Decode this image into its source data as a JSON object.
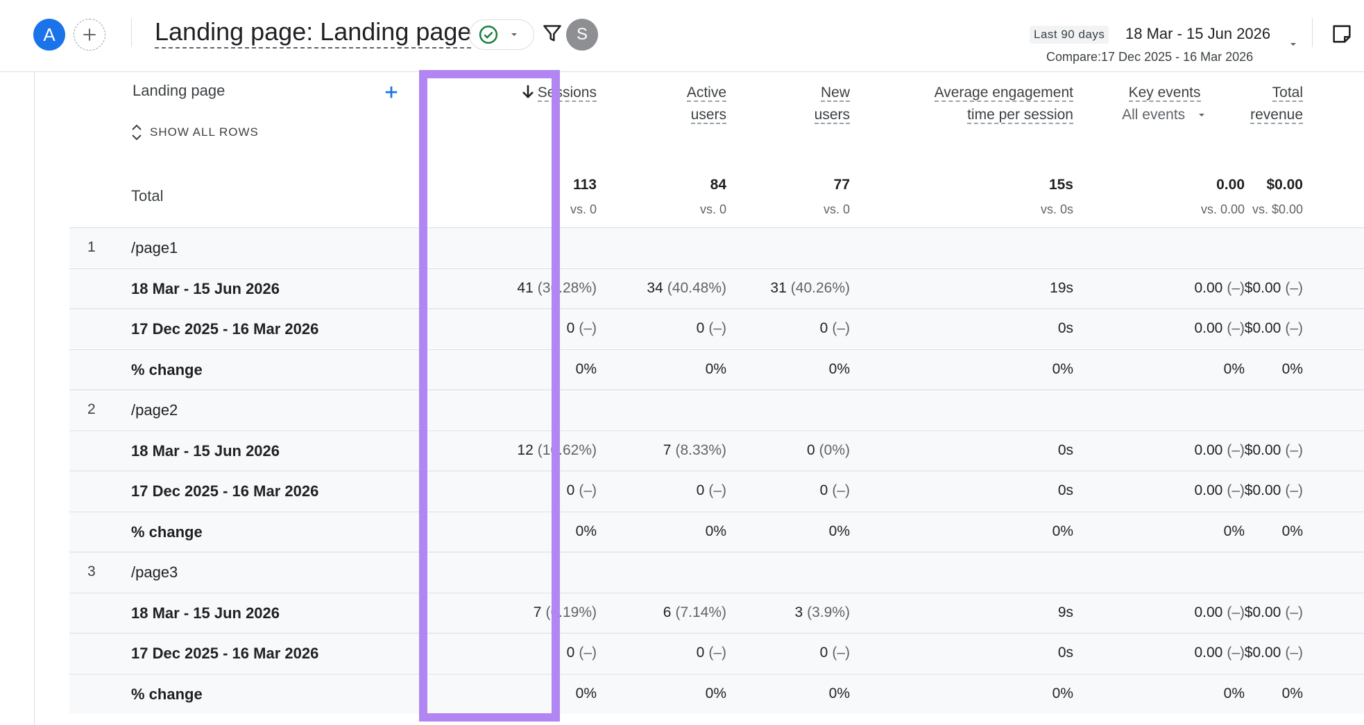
{
  "header": {
    "avatar_primary": "A",
    "avatar_secondary": "S",
    "title": "Landing page: Landing page",
    "date_preset": "Last 90 days",
    "date_range": "18 Mar - 15 Jun 2026",
    "compare_range": "Compare:17 Dec 2025 - 16 Mar 2026"
  },
  "icons": {
    "add": "plus-icon",
    "status": "check-circle-icon",
    "caret": "caret-down-icon",
    "filter": "filter-icon",
    "insights": "insights-icon",
    "sort": "arrow-down-icon",
    "expand": "unfold-icon"
  },
  "colors": {
    "accent": "#1a73e8",
    "highlight": "#b286f2",
    "status_green": "#188038"
  },
  "table": {
    "dimension_header": "Landing page",
    "show_all_rows": "SHOW ALL ROWS",
    "total_label": "Total",
    "columns": [
      {
        "line1": "Sessions",
        "line2": "",
        "sorted": true
      },
      {
        "line1": "Active",
        "line2": "users"
      },
      {
        "line1": "New",
        "line2": "users"
      },
      {
        "line1": "Average engagement",
        "line2": "time per session"
      },
      {
        "line1": "Key events",
        "line2": "All events"
      },
      {
        "line1": "Total",
        "line2": "revenue"
      }
    ],
    "totals": [
      {
        "value": "113",
        "vs": "vs. 0"
      },
      {
        "value": "84",
        "vs": "vs. 0"
      },
      {
        "value": "77",
        "vs": "vs. 0"
      },
      {
        "value": "15s",
        "vs": "vs. 0s"
      },
      {
        "value": "0.00",
        "vs": "vs. 0.00"
      },
      {
        "value": "$0.00",
        "vs": "vs. $0.00"
      }
    ],
    "rows": [
      {
        "idx": "1",
        "label": "/page1",
        "type": "group",
        "cells": []
      },
      {
        "idx": "",
        "label": "18 Mar - 15 Jun 2026",
        "type": "sub",
        "cells": [
          {
            "v": "41",
            "p": "(36.28%)"
          },
          {
            "v": "34",
            "p": "(40.48%)"
          },
          {
            "v": "31",
            "p": "(40.26%)"
          },
          {
            "v": "19s",
            "p": ""
          },
          {
            "v": "0.00",
            "p": "(–)"
          },
          {
            "v": "$0.00",
            "p": "(–)"
          }
        ]
      },
      {
        "idx": "",
        "label": "17 Dec 2025 - 16 Mar 2026",
        "type": "sub",
        "cells": [
          {
            "v": "0",
            "p": "(–)"
          },
          {
            "v": "0",
            "p": "(–)"
          },
          {
            "v": "0",
            "p": "(–)"
          },
          {
            "v": "0s",
            "p": ""
          },
          {
            "v": "0.00",
            "p": "(–)"
          },
          {
            "v": "$0.00",
            "p": "(–)"
          }
        ]
      },
      {
        "idx": "",
        "label": "% change",
        "type": "sub",
        "cells": [
          {
            "v": "0%",
            "p": ""
          },
          {
            "v": "0%",
            "p": ""
          },
          {
            "v": "0%",
            "p": ""
          },
          {
            "v": "0%",
            "p": ""
          },
          {
            "v": "0%",
            "p": ""
          },
          {
            "v": "0%",
            "p": ""
          }
        ]
      },
      {
        "idx": "2",
        "label": "/page2",
        "type": "group",
        "cells": []
      },
      {
        "idx": "",
        "label": "18 Mar - 15 Jun 2026",
        "type": "sub",
        "cells": [
          {
            "v": "12",
            "p": "(10.62%)"
          },
          {
            "v": "7",
            "p": "(8.33%)"
          },
          {
            "v": "0",
            "p": "(0%)"
          },
          {
            "v": "0s",
            "p": ""
          },
          {
            "v": "0.00",
            "p": "(–)"
          },
          {
            "v": "$0.00",
            "p": "(–)"
          }
        ]
      },
      {
        "idx": "",
        "label": "17 Dec 2025 - 16 Mar 2026",
        "type": "sub",
        "cells": [
          {
            "v": "0",
            "p": "(–)"
          },
          {
            "v": "0",
            "p": "(–)"
          },
          {
            "v": "0",
            "p": "(–)"
          },
          {
            "v": "0s",
            "p": ""
          },
          {
            "v": "0.00",
            "p": "(–)"
          },
          {
            "v": "$0.00",
            "p": "(–)"
          }
        ]
      },
      {
        "idx": "",
        "label": "% change",
        "type": "sub",
        "cells": [
          {
            "v": "0%",
            "p": ""
          },
          {
            "v": "0%",
            "p": ""
          },
          {
            "v": "0%",
            "p": ""
          },
          {
            "v": "0%",
            "p": ""
          },
          {
            "v": "0%",
            "p": ""
          },
          {
            "v": "0%",
            "p": ""
          }
        ]
      },
      {
        "idx": "3",
        "label": "/page3",
        "type": "group",
        "cells": []
      },
      {
        "idx": "",
        "label": "18 Mar - 15 Jun 2026",
        "type": "sub",
        "cells": [
          {
            "v": "7",
            "p": "(6.19%)"
          },
          {
            "v": "6",
            "p": "(7.14%)"
          },
          {
            "v": "3",
            "p": "(3.9%)"
          },
          {
            "v": "9s",
            "p": ""
          },
          {
            "v": "0.00",
            "p": "(–)"
          },
          {
            "v": "$0.00",
            "p": "(–)"
          }
        ]
      },
      {
        "idx": "",
        "label": "17 Dec 2025 - 16 Mar 2026",
        "type": "sub",
        "cells": [
          {
            "v": "0",
            "p": "(–)"
          },
          {
            "v": "0",
            "p": "(–)"
          },
          {
            "v": "0",
            "p": "(–)"
          },
          {
            "v": "0s",
            "p": ""
          },
          {
            "v": "0.00",
            "p": "(–)"
          },
          {
            "v": "$0.00",
            "p": "(–)"
          }
        ]
      },
      {
        "idx": "",
        "label": "% change",
        "type": "sub",
        "cells": [
          {
            "v": "0%",
            "p": ""
          },
          {
            "v": "0%",
            "p": ""
          },
          {
            "v": "0%",
            "p": ""
          },
          {
            "v": "0%",
            "p": ""
          },
          {
            "v": "0%",
            "p": ""
          },
          {
            "v": "0%",
            "p": ""
          }
        ]
      }
    ]
  }
}
